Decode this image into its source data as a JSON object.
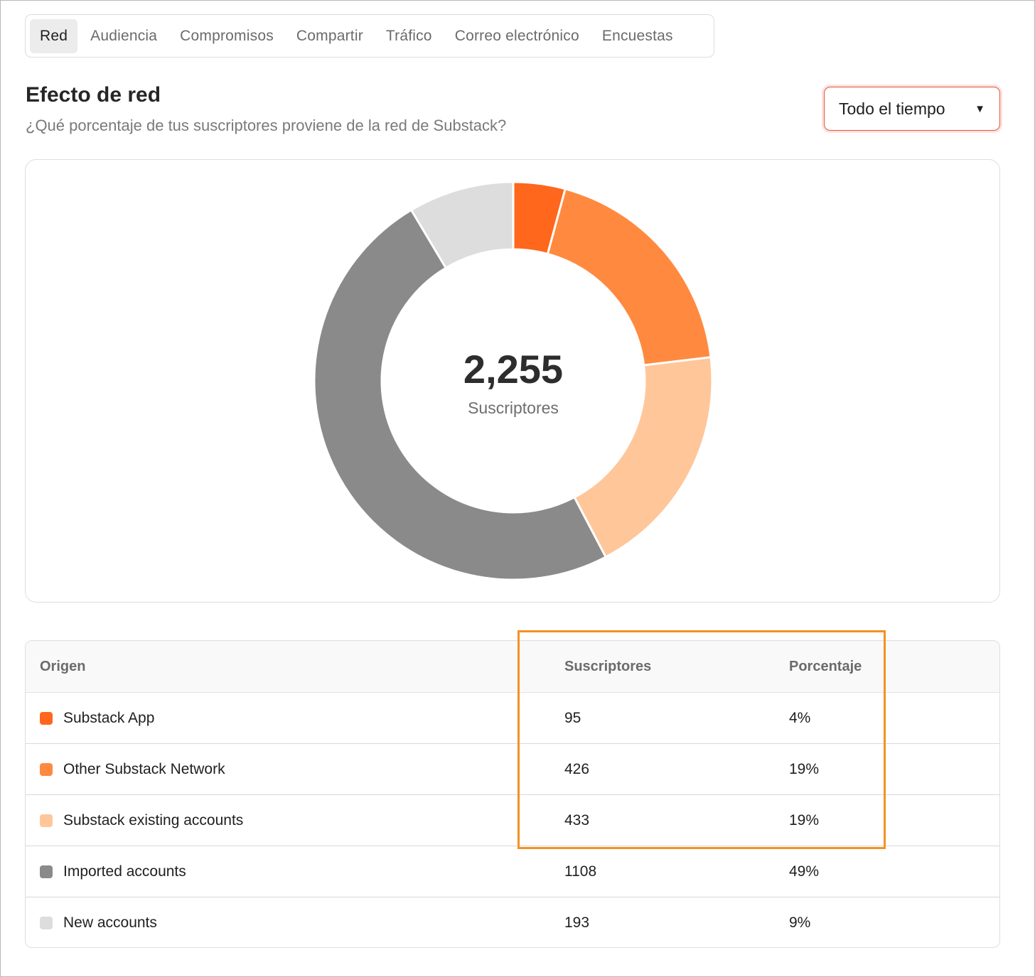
{
  "tabs": [
    {
      "label": "Red",
      "active": true
    },
    {
      "label": "Audiencia",
      "active": false
    },
    {
      "label": "Compromisos",
      "active": false
    },
    {
      "label": "Compartir",
      "active": false
    },
    {
      "label": "Tráfico",
      "active": false
    },
    {
      "label": "Correo electrónico",
      "active": false
    },
    {
      "label": "Encuestas",
      "active": false
    }
  ],
  "header": {
    "title": "Efecto de red",
    "subtitle": "¿Qué porcentaje de tus suscriptores proviene de la red de Substack?"
  },
  "range_select": {
    "value": "Todo el tiempo",
    "caret": "▼"
  },
  "chart_center": {
    "value": "2,255",
    "label": "Suscriptores"
  },
  "chart_data": {
    "type": "pie",
    "donut": true,
    "categories": [
      "Substack App",
      "Other Substack Network",
      "Substack existing accounts",
      "Imported accounts",
      "New accounts"
    ],
    "values": [
      95,
      426,
      433,
      1108,
      193
    ],
    "colors": [
      "#ff671d",
      "#ff8a3f",
      "#ffc69a",
      "#8a8a8a",
      "#dddddd"
    ],
    "total": 2255
  },
  "table": {
    "headers": {
      "origin": "Origen",
      "subscribers": "Suscriptores",
      "percent": "Porcentaje"
    },
    "rows": [
      {
        "origin": "Substack App",
        "subscribers": "95",
        "percent": "4%",
        "color": "#ff671d"
      },
      {
        "origin": "Other Substack Network",
        "subscribers": "426",
        "percent": "19%",
        "color": "#ff8a3f"
      },
      {
        "origin": "Substack existing accounts",
        "subscribers": "433",
        "percent": "19%",
        "color": "#ffc69a"
      },
      {
        "origin": "Imported accounts",
        "subscribers": "1108",
        "percent": "49%",
        "color": "#8a8a8a"
      },
      {
        "origin": "New accounts",
        "subscribers": "193",
        "percent": "9%",
        "color": "#dddddd"
      }
    ]
  },
  "highlight_color": "#f39222"
}
